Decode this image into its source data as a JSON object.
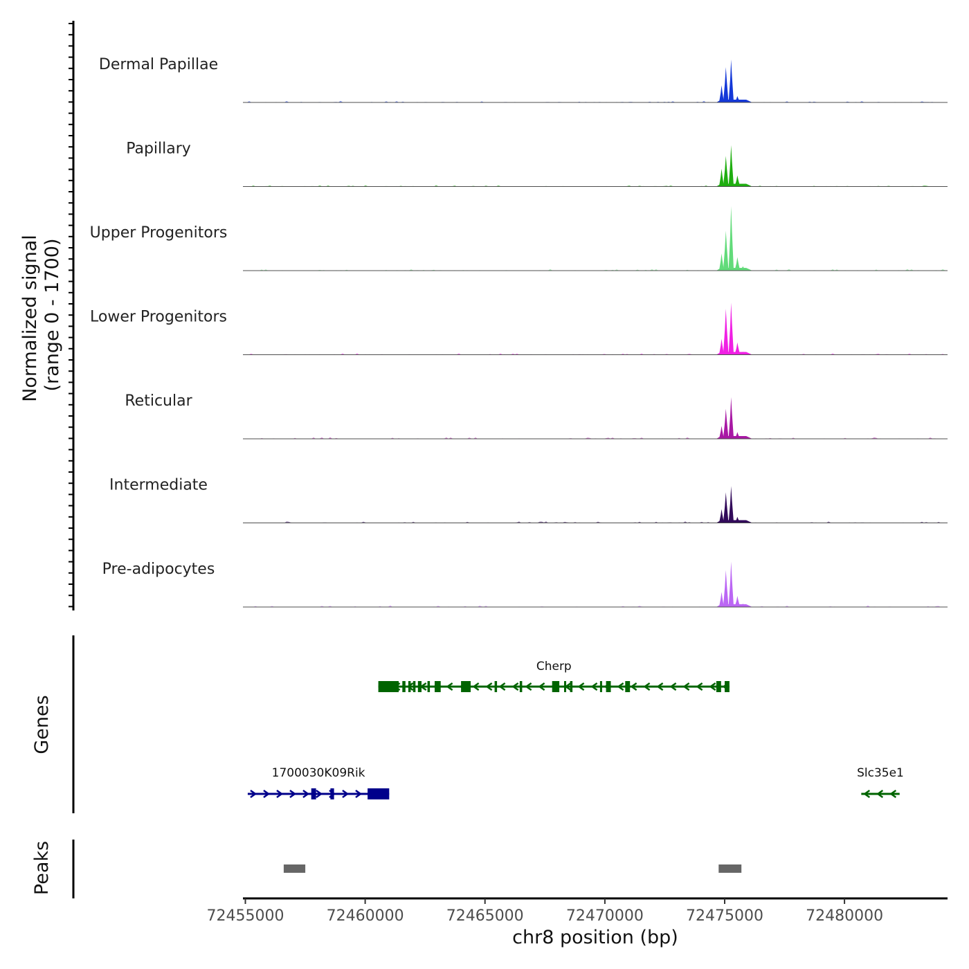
{
  "chart_data": {
    "type": "area",
    "title": "",
    "xlabel": "chr8 position (bp)",
    "ylabel": "Normalized signal",
    "ylabel_range": "(range 0 - 1700)",
    "ylim": [
      0,
      1700
    ],
    "xlim": [
      72454900,
      72484300
    ],
    "x_ticks": [
      {
        "value": 72455000,
        "label": "72455000"
      },
      {
        "value": 72460000,
        "label": "72460000"
      },
      {
        "value": 72465000,
        "label": "72465000"
      },
      {
        "value": 72470000,
        "label": "72470000"
      },
      {
        "value": 72475000,
        "label": "72475000"
      },
      {
        "value": 72480000,
        "label": "72480000"
      }
    ],
    "coverage_tracks": [
      {
        "name": "Dermal Papillae",
        "color": "#1438d8",
        "peaks": [
          {
            "x": 72474870,
            "w": 90,
            "h": 560
          },
          {
            "x": 72475050,
            "w": 110,
            "h": 1150
          },
          {
            "x": 72475270,
            "w": 100,
            "h": 1400
          },
          {
            "x": 72475530,
            "w": 110,
            "h": 210
          },
          {
            "x": 72475760,
            "w": 140,
            "h": 70
          }
        ]
      },
      {
        "name": "Papillary",
        "color": "#1fae10",
        "peaks": [
          {
            "x": 72474870,
            "w": 90,
            "h": 580
          },
          {
            "x": 72475050,
            "w": 110,
            "h": 1000
          },
          {
            "x": 72475270,
            "w": 100,
            "h": 1350
          },
          {
            "x": 72475530,
            "w": 110,
            "h": 360
          },
          {
            "x": 72475760,
            "w": 140,
            "h": 90
          }
        ]
      },
      {
        "name": "Upper Progenitors",
        "color": "#62db7a",
        "peaks": [
          {
            "x": 72474870,
            "w": 90,
            "h": 560
          },
          {
            "x": 72475050,
            "w": 110,
            "h": 1300
          },
          {
            "x": 72475270,
            "w": 100,
            "h": 2100
          },
          {
            "x": 72475530,
            "w": 110,
            "h": 440
          },
          {
            "x": 72475760,
            "w": 140,
            "h": 140
          }
        ]
      },
      {
        "name": "Lower Progenitors",
        "color": "#f020e4",
        "peaks": [
          {
            "x": 72474870,
            "w": 90,
            "h": 520
          },
          {
            "x": 72475050,
            "w": 110,
            "h": 1500
          },
          {
            "x": 72475270,
            "w": 100,
            "h": 1700
          },
          {
            "x": 72475530,
            "w": 110,
            "h": 400
          },
          {
            "x": 72475760,
            "w": 140,
            "h": 100
          }
        ]
      },
      {
        "name": "Reticular",
        "color": "#a818a4",
        "peaks": [
          {
            "x": 72474870,
            "w": 90,
            "h": 420
          },
          {
            "x": 72475050,
            "w": 110,
            "h": 980
          },
          {
            "x": 72475270,
            "w": 100,
            "h": 1360
          },
          {
            "x": 72475530,
            "w": 110,
            "h": 220
          },
          {
            "x": 72475760,
            "w": 140,
            "h": 70
          }
        ]
      },
      {
        "name": "Intermediate",
        "color": "#320a5a",
        "peaks": [
          {
            "x": 72474870,
            "w": 90,
            "h": 450
          },
          {
            "x": 72475050,
            "w": 110,
            "h": 1000
          },
          {
            "x": 72475270,
            "w": 100,
            "h": 1200
          },
          {
            "x": 72475530,
            "w": 110,
            "h": 200
          },
          {
            "x": 72475760,
            "w": 140,
            "h": 60
          }
        ]
      },
      {
        "name": "Pre-adipocytes",
        "color": "#bb66f4",
        "peaks": [
          {
            "x": 72474870,
            "w": 90,
            "h": 490
          },
          {
            "x": 72475050,
            "w": 110,
            "h": 1200
          },
          {
            "x": 72475270,
            "w": 100,
            "h": 1480
          },
          {
            "x": 72475530,
            "w": 110,
            "h": 360
          },
          {
            "x": 72475760,
            "w": 140,
            "h": 110
          }
        ]
      }
    ],
    "genes_track": {
      "label": "Genes",
      "genes": [
        {
          "name": "Cherp",
          "start": 72460550,
          "end": 72475200,
          "strand": "-",
          "color": "#006400",
          "exons": [
            [
              72460550,
              72461400
            ],
            [
              72461550,
              72461680
            ],
            [
              72461800,
              72461900
            ],
            [
              72462000,
              72462100
            ],
            [
              72462200,
              72462350
            ],
            [
              72462600,
              72462700
            ],
            [
              72462900,
              72463150
            ],
            [
              72464000,
              72464400
            ],
            [
              72465400,
              72465500
            ],
            [
              72466450,
              72466550
            ],
            [
              72467800,
              72468100
            ],
            [
              72468300,
              72468380
            ],
            [
              72468550,
              72468650
            ],
            [
              72469800,
              72469880
            ],
            [
              72470050,
              72470250
            ],
            [
              72470850,
              72471050
            ],
            [
              72474650,
              72474850
            ],
            [
              72475000,
              72475200
            ]
          ]
        },
        {
          "name": "1700030K09Rik",
          "start": 72455100,
          "end": 72461000,
          "strand": "+",
          "color": "#00008b",
          "exons": [
            [
              72457750,
              72457950
            ],
            [
              72458550,
              72458700
            ],
            [
              72460100,
              72461000
            ]
          ]
        },
        {
          "name": "Slc35e1",
          "start": 72480700,
          "end": 72482300,
          "strand": "-",
          "color": "#006400",
          "exons": []
        }
      ]
    },
    "peaks_track": {
      "label": "Peaks",
      "color": "#666666",
      "regions": [
        [
          72456600,
          72457500
        ],
        [
          72474750,
          72475700
        ]
      ]
    }
  }
}
